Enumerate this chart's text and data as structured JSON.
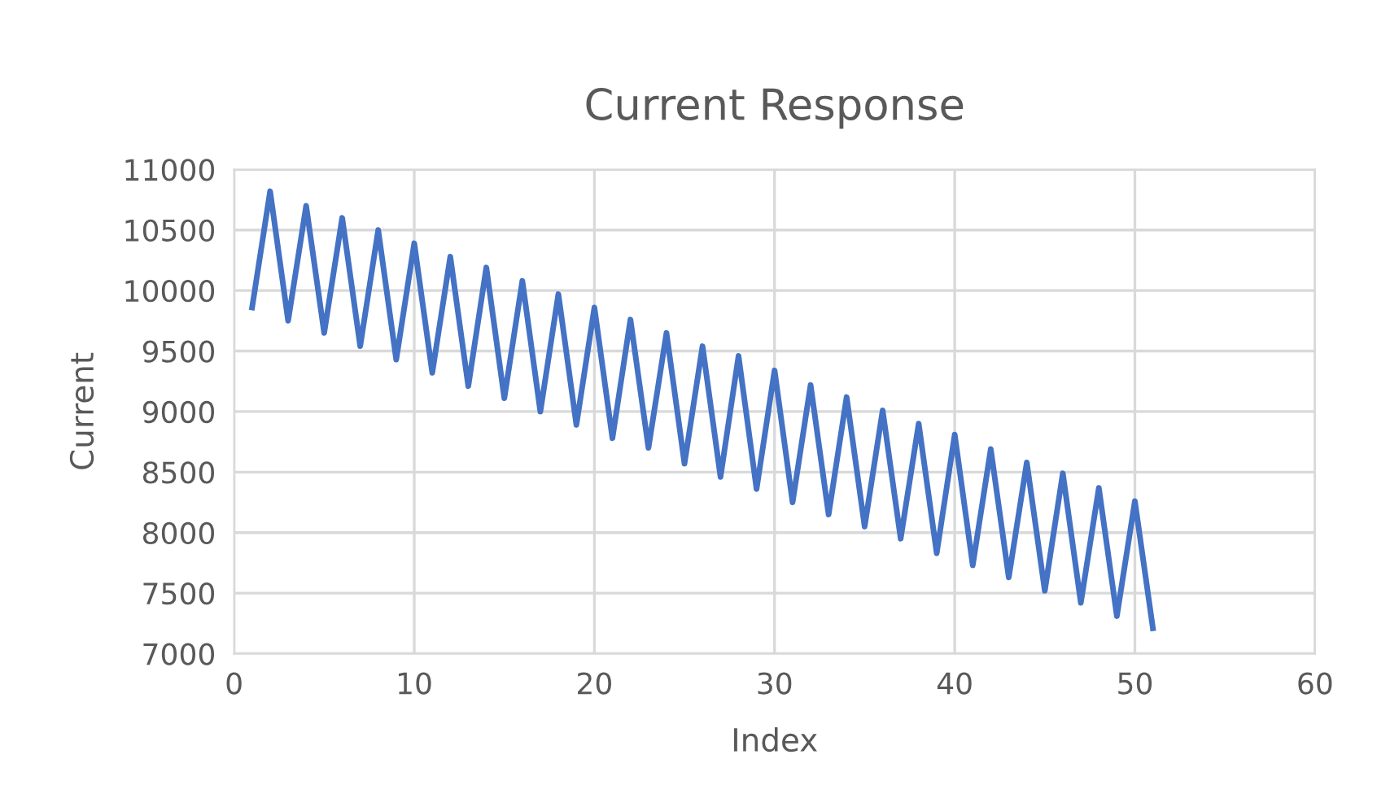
{
  "chart_data": {
    "type": "line",
    "title": "Current Response",
    "xlabel": "Index",
    "ylabel": "Current",
    "x": [
      1,
      2,
      3,
      4,
      5,
      6,
      7,
      8,
      9,
      10,
      11,
      12,
      13,
      14,
      15,
      16,
      17,
      18,
      19,
      20,
      21,
      22,
      23,
      24,
      25,
      26,
      27,
      28,
      29,
      30,
      31,
      32,
      33,
      34,
      35,
      36,
      37,
      38,
      39,
      40,
      41,
      42,
      43,
      44,
      45,
      46,
      47,
      48,
      49,
      50,
      51
    ],
    "series": [
      {
        "color": "#4472c4",
        "values": [
          9860,
          10820,
          9750,
          10700,
          9650,
          10600,
          9540,
          10500,
          9430,
          10390,
          9320,
          10280,
          9210,
          10190,
          9110,
          10080,
          9000,
          9970,
          8890,
          9860,
          8780,
          9760,
          8700,
          9650,
          8570,
          9540,
          8460,
          9460,
          8360,
          9340,
          8250,
          9220,
          8150,
          9120,
          8050,
          9010,
          7950,
          8900,
          7830,
          8810,
          7730,
          8690,
          7630,
          8580,
          7520,
          8490,
          7420,
          8370,
          7310,
          8260,
          7210
        ]
      }
    ],
    "xlim": [
      0,
      60
    ],
    "xticks": [
      0,
      10,
      20,
      30,
      40,
      50,
      60
    ],
    "ylim": [
      7000,
      11000
    ],
    "yticks": [
      7000,
      7500,
      8000,
      8500,
      9000,
      9500,
      10000,
      10500,
      11000
    ],
    "grid": true,
    "legend": false,
    "marker": "none",
    "line_style": "solid"
  }
}
